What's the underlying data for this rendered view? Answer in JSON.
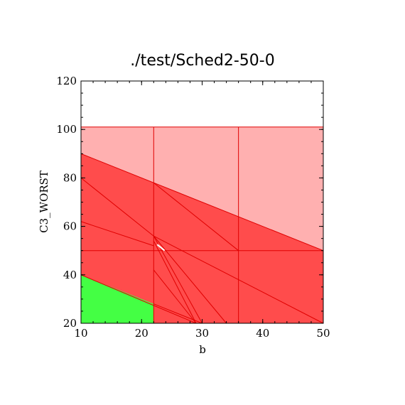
{
  "chart_data": {
    "type": "area",
    "title": "./test/Sched2-50-0",
    "xlabel": "b",
    "ylabel": "C3_WORST",
    "xlim": [
      10,
      50
    ],
    "ylim": [
      20,
      120
    ],
    "xticks": [
      10,
      20,
      30,
      40,
      50
    ],
    "yticks": [
      20,
      40,
      60,
      80,
      100,
      120
    ],
    "colors": {
      "light_region": "#ffb0b0",
      "dark_region": "#ff4c4c",
      "feasible_region": "#44ff44",
      "lines": "#e00000"
    },
    "regions": [
      {
        "color": "light_region",
        "polygon": [
          [
            10,
            20
          ],
          [
            50,
            20
          ],
          [
            50,
            101
          ],
          [
            10,
            101
          ]
        ]
      },
      {
        "color": "dark_region",
        "polygon": [
          [
            10,
            20
          ],
          [
            50,
            20
          ],
          [
            50,
            50
          ],
          [
            22,
            78
          ],
          [
            10,
            90
          ]
        ]
      },
      {
        "color": "feasible_region",
        "polygon": [
          [
            10,
            20
          ],
          [
            22,
            20
          ],
          [
            22,
            28
          ],
          [
            10,
            40
          ]
        ]
      }
    ],
    "hatched_region": [
      [
        22.6,
        52.5
      ],
      [
        23.8,
        50.0
      ]
    ],
    "lines": [
      [
        [
          10,
          101
        ],
        [
          50,
          101
        ]
      ],
      [
        [
          10,
          90
        ],
        [
          22,
          78
        ]
      ],
      [
        [
          22,
          78
        ],
        [
          50,
          50
        ]
      ],
      [
        [
          22,
          20
        ],
        [
          22,
          101
        ]
      ],
      [
        [
          36,
          20
        ],
        [
          36,
          101
        ]
      ],
      [
        [
          10,
          50
        ],
        [
          50,
          50
        ]
      ],
      [
        [
          10,
          80
        ],
        [
          22,
          56
        ]
      ],
      [
        [
          10,
          62
        ],
        [
          22,
          52
        ]
      ],
      [
        [
          22,
          78
        ],
        [
          36,
          50
        ]
      ],
      [
        [
          10,
          40
        ],
        [
          29,
          20
        ]
      ],
      [
        [
          22,
          56
        ],
        [
          50,
          20
        ]
      ],
      [
        [
          22,
          56
        ],
        [
          30,
          20
        ]
      ],
      [
        [
          22,
          56
        ],
        [
          34,
          20
        ]
      ],
      [
        [
          22,
          54
        ],
        [
          29,
          20
        ]
      ],
      [
        [
          22,
          42
        ],
        [
          29,
          20
        ]
      ],
      [
        [
          22,
          28
        ],
        [
          30,
          20
        ]
      ]
    ]
  }
}
